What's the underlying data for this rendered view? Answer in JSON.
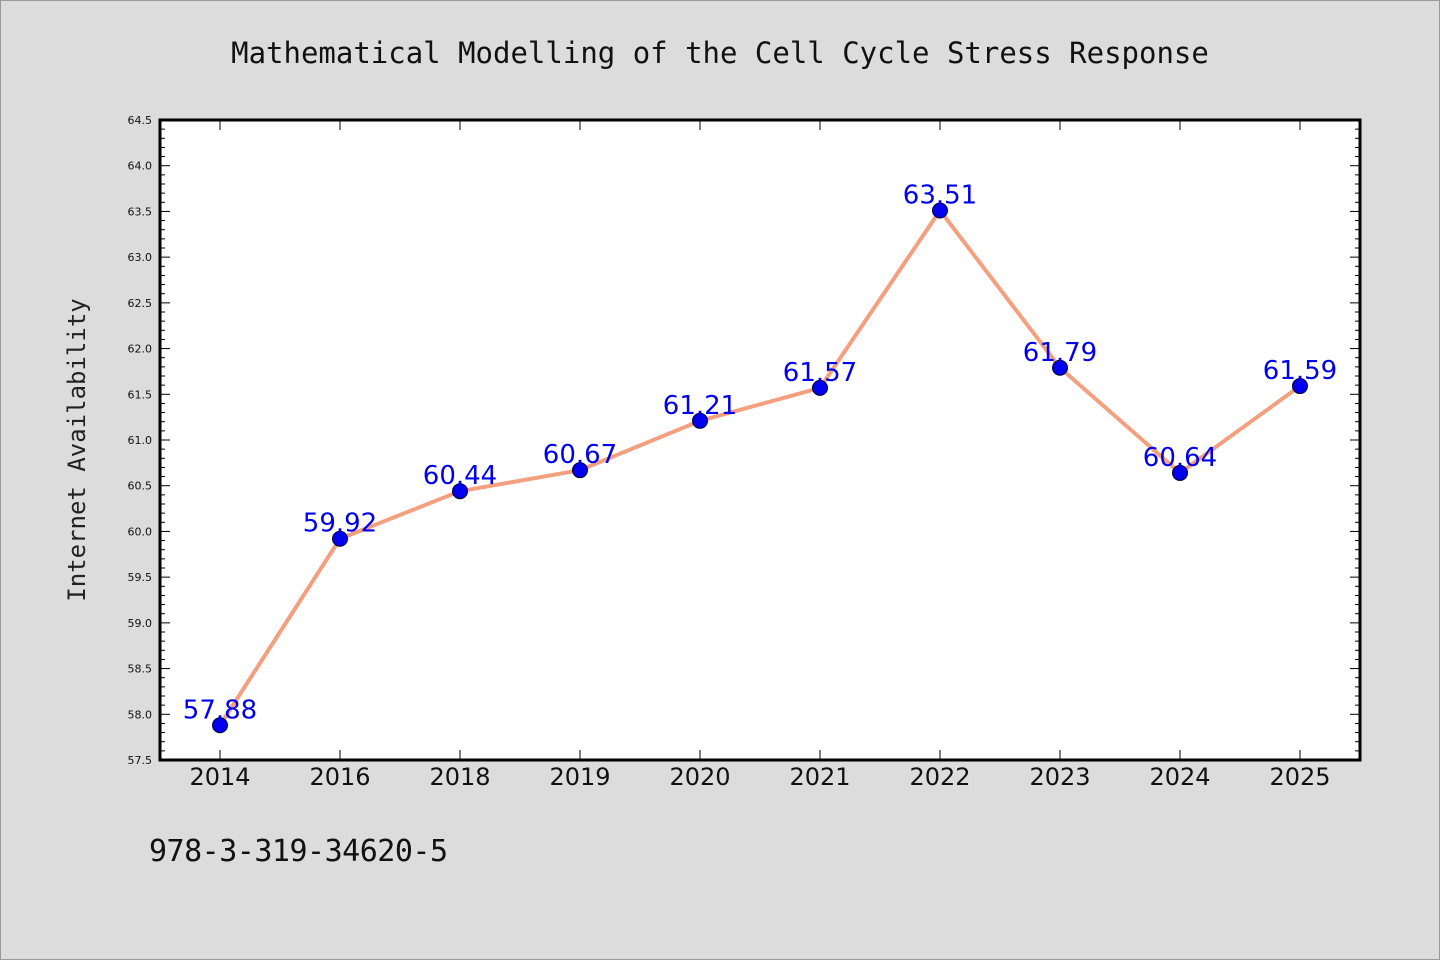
{
  "chart_data": {
    "type": "line",
    "title": "Mathematical Modelling of the Cell Cycle Stress Response",
    "xlabel": "",
    "ylabel": "Internet Availability",
    "categories": [
      "2014",
      "2016",
      "2018",
      "2019",
      "2020",
      "2021",
      "2022",
      "2023",
      "2024",
      "2025"
    ],
    "series": [
      {
        "values": [
          57.88,
          59.92,
          60.44,
          60.67,
          61.21,
          61.57,
          63.51,
          61.79,
          60.64,
          61.59
        ],
        "data_labels": [
          "57.88",
          "59.92",
          "60.44",
          "60.67",
          "61.21",
          "61.57",
          "63.51",
          "61.79",
          "60.64",
          "61.59"
        ]
      }
    ],
    "ylim": [
      57.5,
      64.5
    ],
    "yticks": [
      "57.5",
      "58.0",
      "58.5",
      "59.0",
      "59.5",
      "60.0",
      "60.5",
      "61.0",
      "61.5",
      "62.0",
      "62.5",
      "63.0",
      "63.5",
      "64.0",
      "64.5"
    ],
    "grid": false,
    "legend": "none",
    "colors": {
      "line": "#f4a07f",
      "marker": "#0000ee",
      "data_label": "#0000ee",
      "plot_background": "#ffffff",
      "page_background": "#dcdcdc"
    }
  },
  "footer": {
    "isbn": "978-3-319-34620-5"
  }
}
